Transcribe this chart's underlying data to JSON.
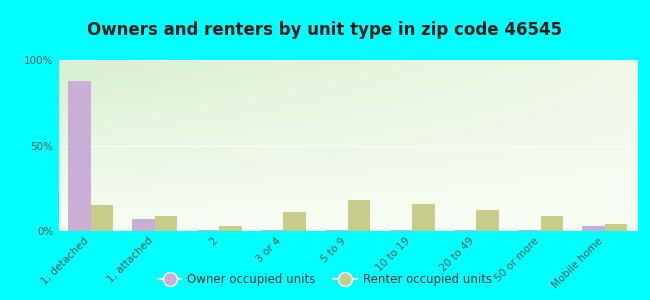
{
  "title": "Owners and renters by unit type in zip code 46545",
  "categories": [
    "1, detached",
    "1, attached",
    "2",
    "3 or 4",
    "5 to 9",
    "10 to 19",
    "20 to 49",
    "50 or more",
    "Mobile home"
  ],
  "owner_values": [
    88,
    7,
    0.3,
    0.3,
    0.3,
    0.3,
    0.3,
    0.3,
    3
  ],
  "renter_values": [
    15,
    9,
    3,
    11,
    18,
    16,
    12,
    9,
    4
  ],
  "owner_color": "#c9aed6",
  "renter_color": "#c8cc8a",
  "bg_top_left": "#d8f0d0",
  "bg_top_right": "#f0f8e8",
  "bg_bottom": "#f8fdf4",
  "outer_bg": "#00ffff",
  "ylim": [
    0,
    100
  ],
  "yticks": [
    0,
    50,
    100
  ],
  "ytick_labels": [
    "0%",
    "50%",
    "100%"
  ],
  "bar_width": 0.35,
  "legend_owner": "Owner occupied units",
  "legend_renter": "Renter occupied units",
  "title_fontsize": 12,
  "tick_fontsize": 7.5
}
